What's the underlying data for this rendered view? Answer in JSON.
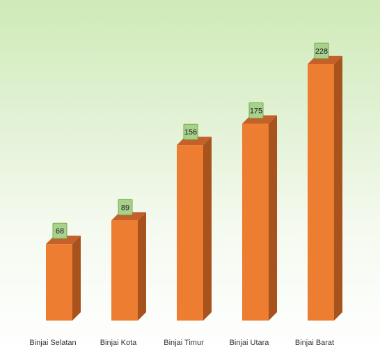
{
  "chart_data": {
    "type": "bar",
    "categories": [
      "Binjai Selatan",
      "Binjai Kota",
      "Binjai Timur",
      "Binjai Utara",
      "Binjai Barat"
    ],
    "values": [
      68,
      89,
      156,
      175,
      228
    ],
    "title": "",
    "xlabel": "",
    "ylabel": "",
    "ylim": [
      0,
      228
    ],
    "grid": false,
    "legend": "none",
    "bar_style": "3d",
    "colors": {
      "bar_front": "#ED7D31",
      "bar_side": "#A8521E",
      "bar_top": "#C4602A",
      "label_box": "#A9D18E",
      "label_border": "#70AD47",
      "label_text": "#1a1a1a",
      "axis_text": "#333333"
    }
  }
}
